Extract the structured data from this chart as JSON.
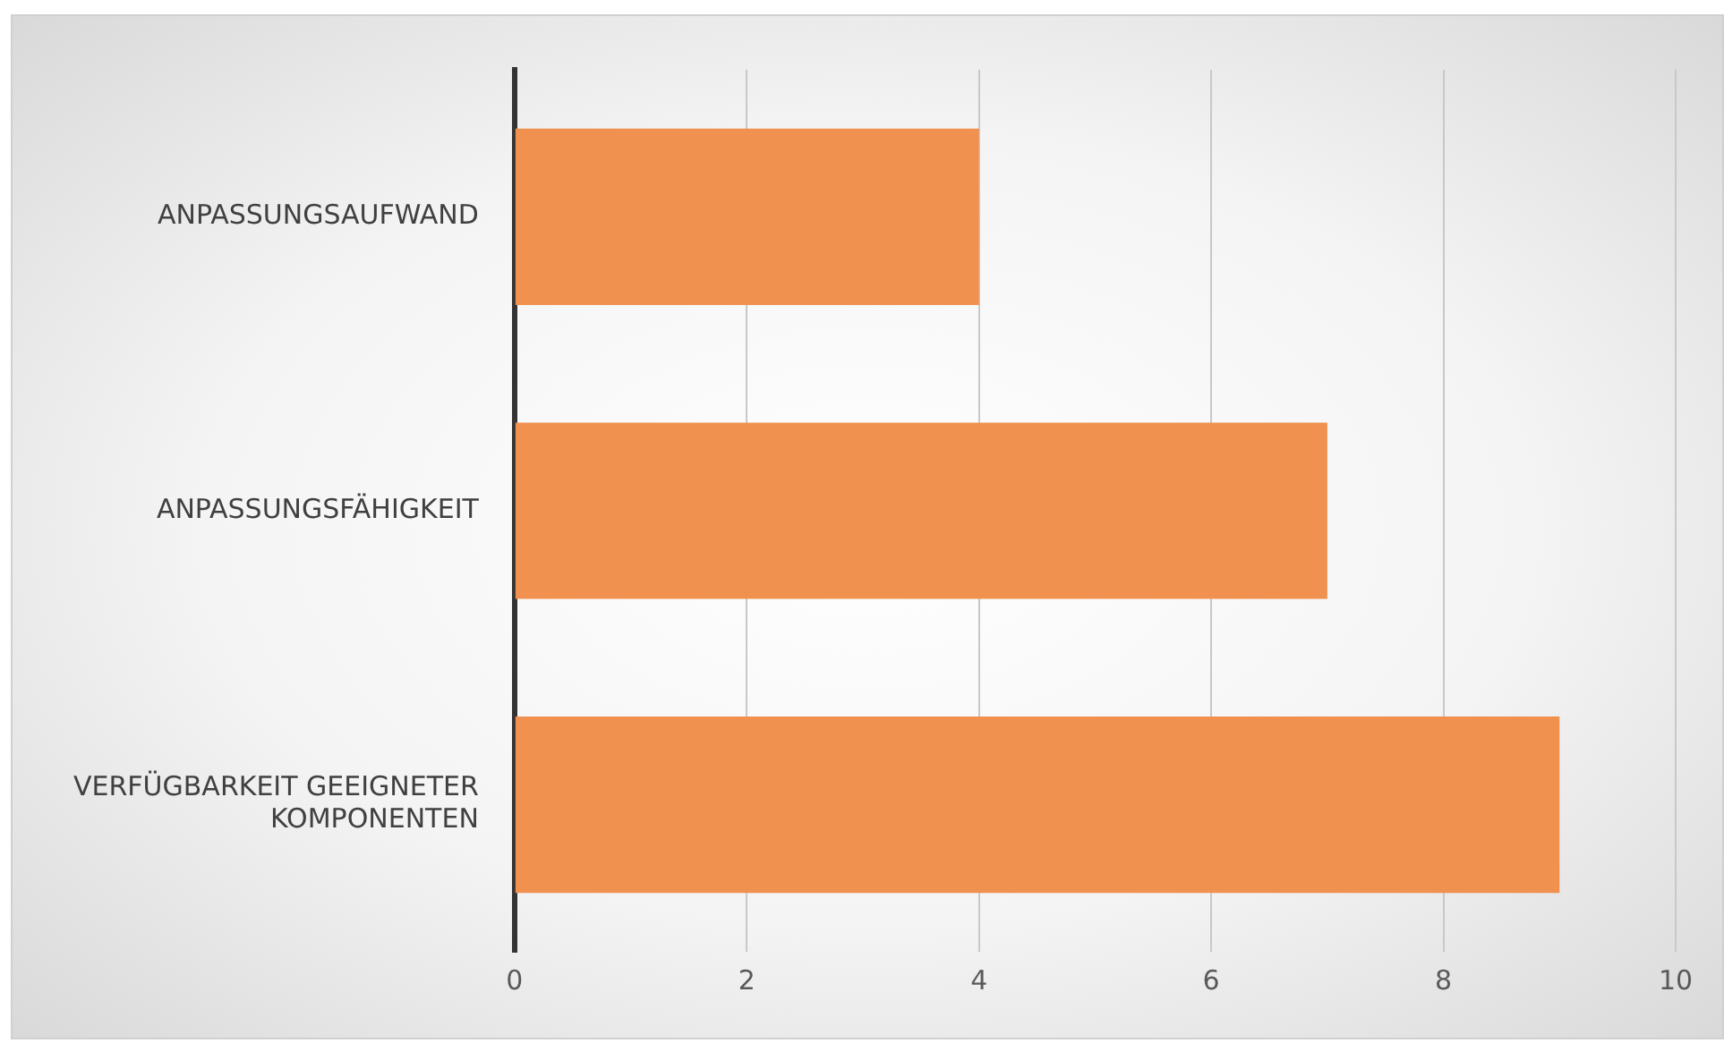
{
  "chart_data": {
    "type": "bar",
    "orientation": "horizontal",
    "categories": [
      "ANPASSUNGSAUFWAND",
      "ANPASSUNGSFÄHIGKEIT",
      "VERFÜGBARKEIT GEEIGNETER KOMPONENTEN"
    ],
    "values": [
      4,
      7,
      9
    ],
    "color": "#f0914f",
    "xlim": [
      0,
      10
    ],
    "xticks": [
      0,
      2,
      4,
      6,
      8,
      10
    ],
    "grid": "x",
    "legend": false
  }
}
